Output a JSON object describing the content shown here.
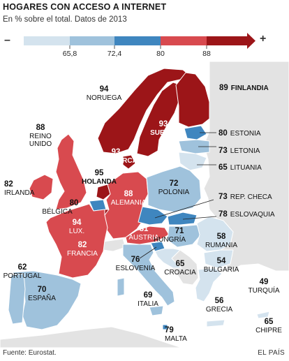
{
  "title": "HOGARES CON ACCESO A INTERNET",
  "subtitle": "En % sobre el total. Datos de 2013",
  "legend": {
    "minus": "–",
    "plus": "+",
    "thresholds": [
      "65,8",
      "72,4",
      "80",
      "88"
    ],
    "colors": [
      "#d4e3ee",
      "#9fc2dc",
      "#3f86bf",
      "#d84a4f",
      "#9c1518"
    ]
  },
  "colors": {
    "water": "#ffffff",
    "non_eu": "#e3e3e3",
    "border": "#ffffff"
  },
  "countries": [
    {
      "id": "noruega",
      "name": "NORUEGA",
      "value": "94"
    },
    {
      "id": "finlandia",
      "name": "FINLANDIA",
      "value": "89"
    },
    {
      "id": "suecia",
      "name": "SUECIA",
      "value": "93"
    },
    {
      "id": "dinamarca",
      "name": "DINAMARCA",
      "value": "93"
    },
    {
      "id": "reino-unido",
      "name": "REINO UNIDO",
      "value": "88"
    },
    {
      "id": "irlanda",
      "name": "IRLANDA",
      "value": "82"
    },
    {
      "id": "holanda",
      "name": "HOLANDA",
      "value": "95"
    },
    {
      "id": "belgica",
      "name": "BÉLGICA",
      "value": "80"
    },
    {
      "id": "lux",
      "name": "LUX.",
      "value": "94"
    },
    {
      "id": "alemania",
      "name": "ALEMANIA",
      "value": "88"
    },
    {
      "id": "francia",
      "name": "FRANCIA",
      "value": "82"
    },
    {
      "id": "austria",
      "name": "AUSTRIA",
      "value": "81"
    },
    {
      "id": "estonia",
      "name": "ESTONIA",
      "value": "80"
    },
    {
      "id": "letonia",
      "name": "LETONIA",
      "value": "73"
    },
    {
      "id": "lituania",
      "name": "LITUANIA",
      "value": "65"
    },
    {
      "id": "polonia",
      "name": "POLONIA",
      "value": "72"
    },
    {
      "id": "rep-checa",
      "name": "REP. CHECA",
      "value": "73"
    },
    {
      "id": "eslovaquia",
      "name": "ESLOVAQUIA",
      "value": "78"
    },
    {
      "id": "hungria",
      "name": "HUNGRÍA",
      "value": "71"
    },
    {
      "id": "rumania",
      "name": "RUMANIA",
      "value": "58"
    },
    {
      "id": "bulgaria",
      "name": "BULGARIA",
      "value": "54"
    },
    {
      "id": "eslovenia",
      "name": "ESLOVENIA",
      "value": "76"
    },
    {
      "id": "croacia",
      "name": "CROACIA",
      "value": "65"
    },
    {
      "id": "italia",
      "name": "ITALIA",
      "value": "69"
    },
    {
      "id": "portugal",
      "name": "PORTUGAL",
      "value": "62"
    },
    {
      "id": "espana",
      "name": "ESPAÑA",
      "value": "70"
    },
    {
      "id": "grecia",
      "name": "GRECIA",
      "value": "56"
    },
    {
      "id": "turquia",
      "name": "TURQUÍA",
      "value": "49"
    },
    {
      "id": "malta",
      "name": "MALTA",
      "value": "79"
    },
    {
      "id": "chipre",
      "name": "CHIPRE",
      "value": "65"
    }
  ],
  "source": "Fuente: Eurostat.",
  "brand": "EL PAÍS"
}
